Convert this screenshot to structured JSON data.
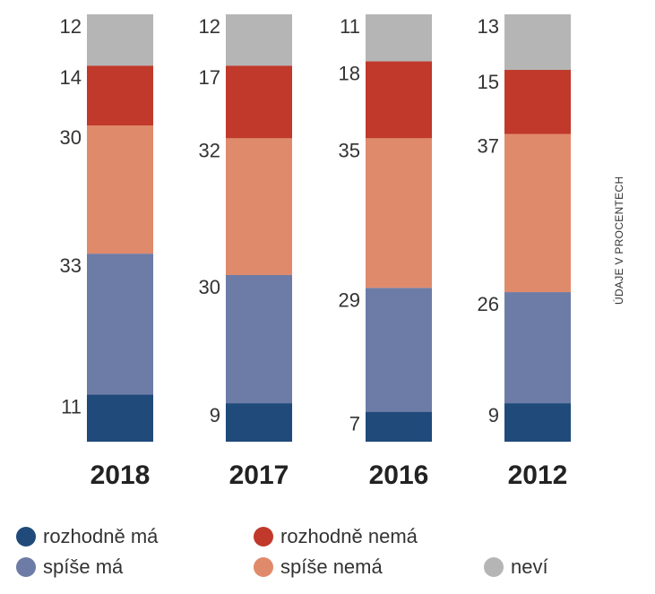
{
  "chart_data": {
    "type": "bar",
    "stacked": true,
    "orientation": "vertical",
    "categories": [
      "2018",
      "2017",
      "2016",
      "2012"
    ],
    "series": [
      {
        "name": "rozhodně má",
        "color": "#1f4a7a",
        "values": [
          11,
          9,
          7,
          9
        ]
      },
      {
        "name": "spíše má",
        "color": "#6d7ca6",
        "values": [
          33,
          30,
          29,
          26
        ]
      },
      {
        "name": "spíše nemá",
        "color": "#e08a6c",
        "values": [
          30,
          32,
          35,
          37
        ]
      },
      {
        "name": "rozhodně nemá",
        "color": "#c0392b",
        "values": [
          14,
          17,
          18,
          15
        ]
      },
      {
        "name": "neví",
        "color": "#b5b5b5",
        "values": [
          12,
          12,
          11,
          13
        ]
      }
    ],
    "units_note": "ÚDAJE V PROCENTECH",
    "ylim": [
      0,
      100
    ],
    "grid": false,
    "legend_position": "bottom",
    "title": "",
    "xlabel": "",
    "ylabel": ""
  }
}
